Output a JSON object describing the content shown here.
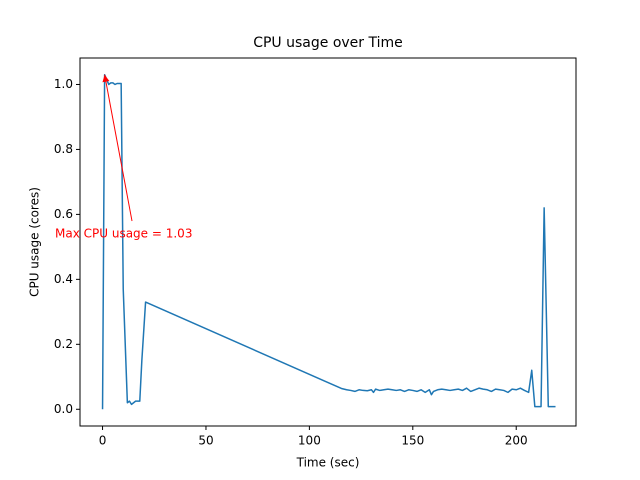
{
  "chart_data": {
    "type": "line",
    "title": "CPU usage over Time",
    "x_label": "Time (sec)",
    "y_label": "CPU usage (cores)",
    "x": [
      0,
      1,
      3,
      4,
      5,
      6,
      7,
      9,
      10,
      12,
      13,
      14,
      16,
      18,
      19,
      20.8,
      115.5,
      118,
      120,
      122,
      124,
      126,
      128,
      130,
      131,
      132,
      134,
      136,
      138,
      140,
      142,
      144,
      146,
      148,
      150,
      152,
      154,
      156,
      158,
      159,
      160,
      162,
      164,
      166,
      168,
      170,
      172,
      174,
      176,
      178,
      180,
      182,
      184,
      186,
      188,
      190,
      192,
      194,
      196,
      198,
      200,
      202,
      204,
      206,
      207.5,
      209,
      212,
      213.5,
      215.5,
      219
    ],
    "series": [
      {
        "name": "CPU usage",
        "color": "#1f77b4",
        "values": [
          0,
          1.03,
          1.0,
          1.005,
          1.005,
          1.0,
          1.003,
          1.003,
          0.37,
          0.02,
          0.025,
          0.015,
          0.025,
          0.025,
          0.15,
          0.33,
          0.064,
          0.06,
          0.058,
          0.055,
          0.06,
          0.058,
          0.057,
          0.06,
          0.052,
          0.062,
          0.058,
          0.06,
          0.062,
          0.06,
          0.058,
          0.06,
          0.055,
          0.06,
          0.058,
          0.055,
          0.06,
          0.052,
          0.06,
          0.045,
          0.055,
          0.06,
          0.062,
          0.06,
          0.058,
          0.06,
          0.062,
          0.058,
          0.065,
          0.055,
          0.06,
          0.065,
          0.062,
          0.06,
          0.055,
          0.062,
          0.06,
          0.058,
          0.052,
          0.062,
          0.06,
          0.065,
          0.058,
          0.052,
          0.12,
          0.008,
          0.008,
          0.62,
          0.008,
          0.008
        ]
      }
    ],
    "annotation": {
      "text": "Max CPU usage = 1.03",
      "x": 1,
      "y": 1.03,
      "color": "#ff0000"
    },
    "xlim": [
      -10.9,
      228.9
    ],
    "ylim": [
      -0.0515,
      1.0815
    ],
    "xticks": [
      0,
      50,
      100,
      150,
      200
    ],
    "yticks": [
      {
        "value": 0,
        "label": "0.0"
      },
      0.2,
      0.4,
      0.6,
      0.8,
      {
        "value": 1,
        "label": "1.0"
      }
    ],
    "grid": false
  }
}
